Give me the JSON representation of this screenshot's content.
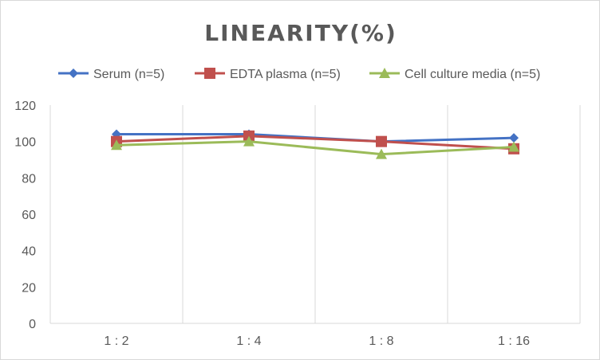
{
  "chart_data": {
    "type": "line",
    "title": "LINEARITY(%)",
    "xlabel": "",
    "ylabel": "",
    "categories": [
      "1 : 2",
      "1 : 4",
      "1 : 8",
      "1 : 16"
    ],
    "ylim": [
      0,
      120
    ],
    "yticks": [
      "0",
      "20",
      "40",
      "60",
      "80",
      "100",
      "120"
    ],
    "grid": "vertical",
    "legend_position": "top",
    "series": [
      {
        "name": "Serum (n=5)",
        "marker": "diamond",
        "color": "#4472c4",
        "values": [
          104,
          104,
          100,
          102
        ]
      },
      {
        "name": "EDTA plasma (n=5)",
        "marker": "square",
        "color": "#c0504d",
        "values": [
          100,
          103,
          100,
          96
        ]
      },
      {
        "name": "Cell culture media (n=5)",
        "marker": "triangle",
        "color": "#9bbb59",
        "values": [
          98,
          100,
          93,
          97
        ]
      }
    ]
  }
}
